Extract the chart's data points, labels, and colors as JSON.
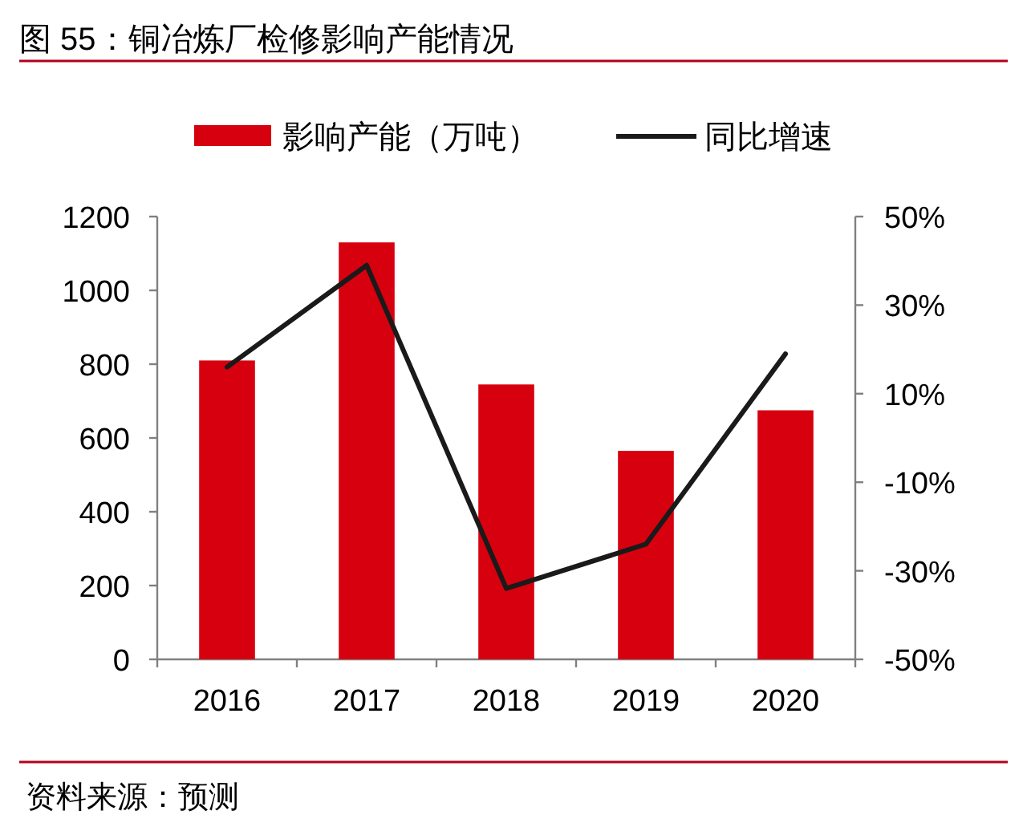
{
  "chart_data": {
    "type": "bar",
    "title": "图 55：铜冶炼厂检修影响产能情况",
    "categories": [
      "2016",
      "2017",
      "2018",
      "2019",
      "2020"
    ],
    "series": [
      {
        "name": "影响产能（万吨）",
        "color": "#d7000f",
        "values": [
          810,
          1130,
          745,
          565,
          675
        ]
      },
      {
        "name": "同比增速",
        "type": "line",
        "axis": "y2",
        "color": "#1a1a1a",
        "values": [
          16,
          39,
          -34,
          -24,
          19
        ]
      }
    ],
    "ylim": [
      0,
      1200
    ],
    "yticks": [
      0,
      200,
      400,
      600,
      800,
      1000,
      1200
    ],
    "y2lim": [
      -50,
      50
    ],
    "y2ticks": [
      {
        "value": -50,
        "label": "-50%"
      },
      {
        "value": -30,
        "label": "-30%"
      },
      {
        "value": -10,
        "label": "-10%"
      },
      {
        "value": 10,
        "label": "10%"
      },
      {
        "value": 30,
        "label": "30%"
      },
      {
        "value": 50,
        "label": "50%"
      }
    ],
    "legend": "top",
    "annotations": [
      "资料来源：预测"
    ]
  }
}
